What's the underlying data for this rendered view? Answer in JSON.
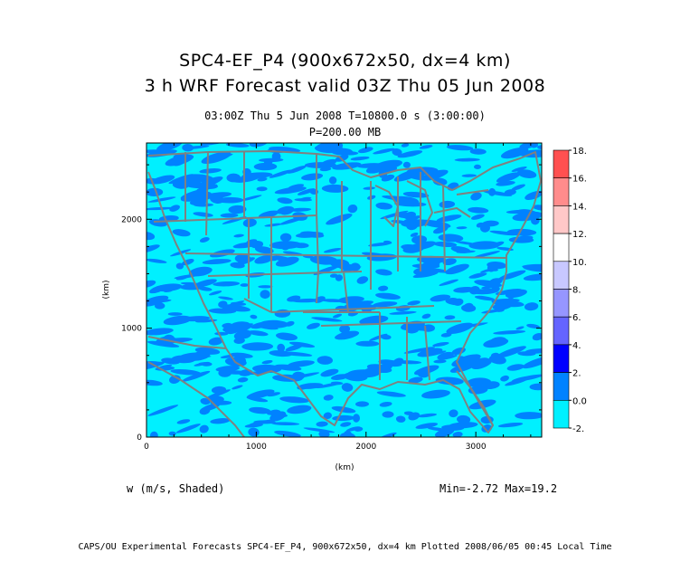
{
  "title": "SPC4-EF_P4 (900x672x50, dx=4 km)",
  "subtitle": "3 h WRF Forecast valid 03Z Thu 05 Jun 2008",
  "time_line": "03:00Z Thu  5 Jun 2008    T=10800.0 s (3:00:00)",
  "level_line": "P=200.00 MB",
  "variable_label": "w (m/s, Shaded)",
  "min_max": "Min=-2.72 Max=19.2",
  "footer": "CAPS/OU Experimental Forecasts  SPC4-EF_P4, 900x672x50, dx=4 km  Plotted 2008/06/05 00:45 Local Time",
  "axes": {
    "x_label": "(km)",
    "y_label": "(km)",
    "x_ticks": [
      "0",
      "1000",
      "2000",
      "3000"
    ],
    "y_ticks": [
      "0",
      "1000",
      "2000"
    ],
    "x_range_km": [
      0,
      3600
    ],
    "y_range_km": [
      0,
      2700
    ]
  },
  "colorbar": {
    "labels": [
      "18.",
      "16.",
      "14.",
      "12.",
      "10.",
      "8.",
      "6.",
      "4.",
      "2.",
      "0.0",
      "-2."
    ],
    "colors": [
      "#ff5050",
      "#ff8c8c",
      "#ffc8c8",
      "#ffffff",
      "#c8c8ff",
      "#9696ff",
      "#6464ff",
      "#0000ff",
      "#0082ff",
      "#00f0ff"
    ]
  },
  "colors": {
    "field_background": "#00f0ff",
    "field_shade": "#0082ff",
    "map_lines": "#808080"
  }
}
